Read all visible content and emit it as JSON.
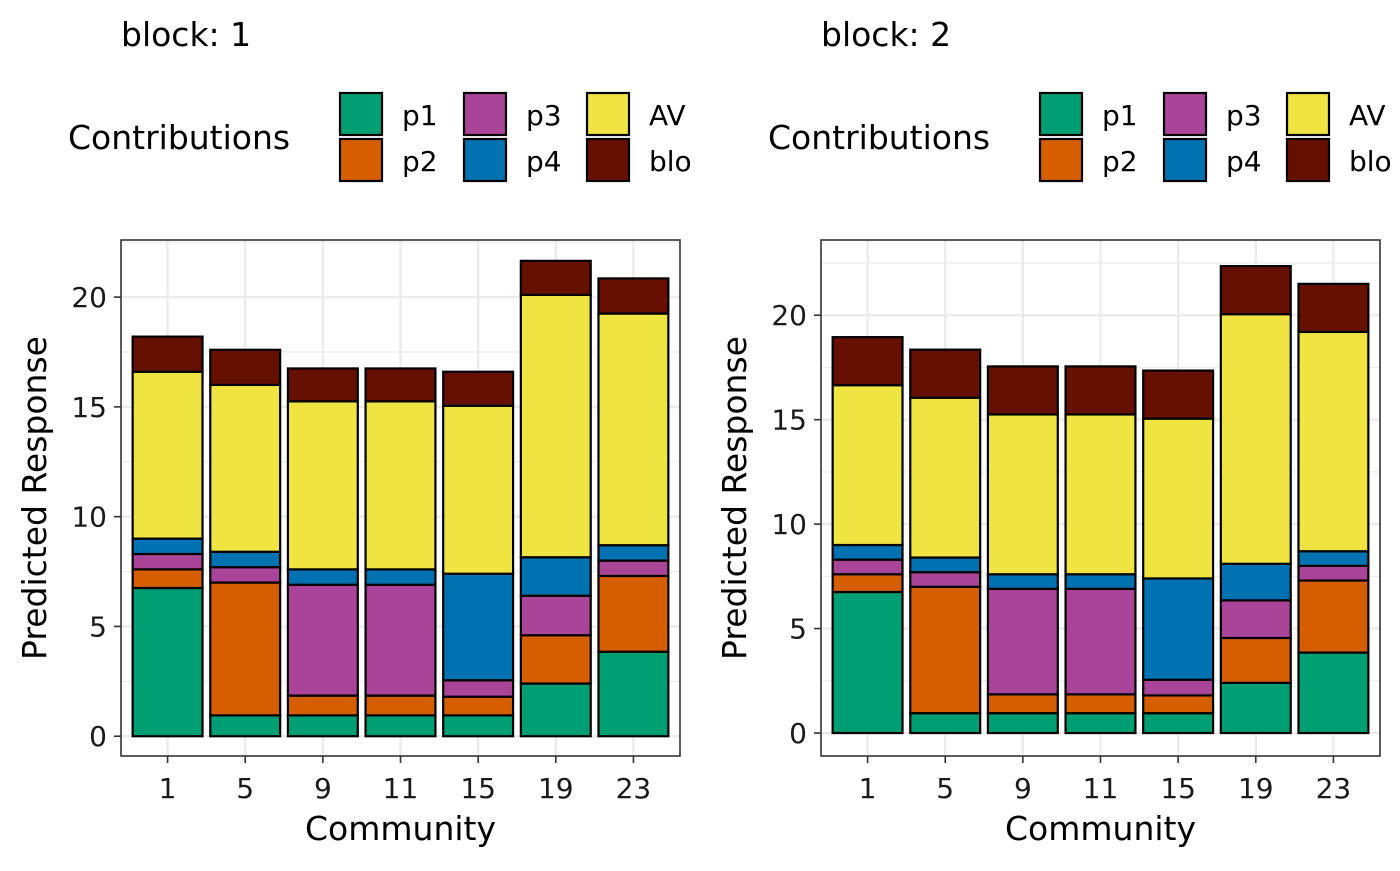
{
  "legend": {
    "title": "Contributions",
    "items": [
      {
        "key": "p1",
        "label": "p1",
        "color": "#009E73"
      },
      {
        "key": "p2",
        "label": "p2",
        "color": "#D55E00"
      },
      {
        "key": "p3",
        "label": "p3",
        "color": "#AA4499"
      },
      {
        "key": "p4",
        "label": "p4",
        "color": "#0072B2"
      },
      {
        "key": "AV",
        "label": "AV",
        "color": "#F0E442"
      },
      {
        "key": "blo",
        "label": "blo",
        "color": "#661100"
      }
    ]
  },
  "chart_data": [
    {
      "type": "bar",
      "stacked": true,
      "title": "block: 1",
      "xlabel": "Community",
      "ylabel": "Predicted Response",
      "categories": [
        "1",
        "5",
        "9",
        "11",
        "15",
        "19",
        "23"
      ],
      "ylim": [
        -0.9,
        22.6
      ],
      "yticks": [
        0,
        5,
        10,
        15,
        20
      ],
      "grid": true,
      "legend_position": "top",
      "series": [
        {
          "name": "p1",
          "values": [
            6.75,
            0.95,
            0.95,
            0.95,
            0.95,
            2.4,
            3.85
          ]
        },
        {
          "name": "p2",
          "values": [
            0.85,
            6.05,
            0.9,
            0.9,
            0.85,
            2.2,
            3.45
          ]
        },
        {
          "name": "p3",
          "values": [
            0.7,
            0.7,
            5.05,
            5.05,
            0.75,
            1.8,
            0.7
          ]
        },
        {
          "name": "p4",
          "values": [
            0.7,
            0.7,
            0.7,
            0.7,
            4.85,
            1.75,
            0.7
          ]
        },
        {
          "name": "AV",
          "values": [
            7.6,
            7.6,
            7.65,
            7.65,
            7.65,
            11.95,
            10.55
          ]
        },
        {
          "name": "blo",
          "values": [
            1.6,
            1.6,
            1.5,
            1.5,
            1.55,
            1.55,
            1.6
          ]
        }
      ]
    },
    {
      "type": "bar",
      "stacked": true,
      "title": "block: 2",
      "xlabel": "Community",
      "ylabel": "Predicted Response",
      "categories": [
        "1",
        "5",
        "9",
        "11",
        "15",
        "19",
        "23"
      ],
      "ylim": [
        -1.1,
        23.6
      ],
      "yticks": [
        0,
        5,
        10,
        15,
        20
      ],
      "grid": true,
      "legend_position": "top",
      "series": [
        {
          "name": "p1",
          "values": [
            6.75,
            0.95,
            0.95,
            0.95,
            0.95,
            2.4,
            3.85
          ]
        },
        {
          "name": "p2",
          "values": [
            0.85,
            6.05,
            0.9,
            0.9,
            0.85,
            2.15,
            3.45
          ]
        },
        {
          "name": "p3",
          "values": [
            0.7,
            0.7,
            5.05,
            5.05,
            0.75,
            1.8,
            0.7
          ]
        },
        {
          "name": "p4",
          "values": [
            0.7,
            0.7,
            0.7,
            0.7,
            4.85,
            1.75,
            0.7
          ]
        },
        {
          "name": "AV",
          "values": [
            7.65,
            7.65,
            7.65,
            7.65,
            7.65,
            11.95,
            10.5
          ]
        },
        {
          "name": "blo",
          "values": [
            2.3,
            2.3,
            2.3,
            2.3,
            2.3,
            2.3,
            2.3
          ]
        }
      ]
    }
  ]
}
